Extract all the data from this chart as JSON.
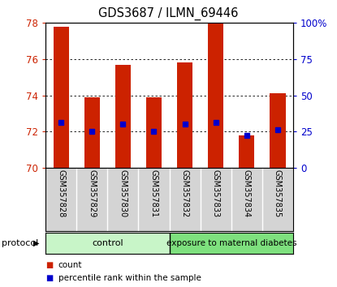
{
  "title": "GDS3687 / ILMN_69446",
  "samples": [
    "GSM357828",
    "GSM357829",
    "GSM357830",
    "GSM357831",
    "GSM357832",
    "GSM357833",
    "GSM357834",
    "GSM357835"
  ],
  "count_values": [
    77.8,
    73.9,
    75.7,
    73.9,
    75.8,
    78.0,
    71.8,
    74.1
  ],
  "percentile_values": [
    72.5,
    72.0,
    72.4,
    72.0,
    72.4,
    72.5,
    71.8,
    72.1
  ],
  "ylim_left": [
    70,
    78
  ],
  "ylim_right": [
    0,
    100
  ],
  "yticks_left": [
    70,
    72,
    74,
    76,
    78
  ],
  "yticks_right": [
    0,
    25,
    50,
    75,
    100
  ],
  "ytick_labels_right": [
    "0",
    "25",
    "50",
    "75",
    "100%"
  ],
  "bar_color": "#cc2200",
  "dot_color": "#0000cc",
  "bar_width": 0.5,
  "left_tick_color": "#cc2200",
  "right_tick_color": "#0000cc",
  "control_samples": 4,
  "group_labels": [
    "control",
    "exposure to maternal diabetes"
  ],
  "group_color_light": "#c8f5c8",
  "group_color_dark": "#7ee07e",
  "protocol_label": "protocol",
  "legend_items": [
    "count",
    "percentile rank within the sample"
  ],
  "plot_bg_color": "#ffffff",
  "grid_color": "#000000",
  "xlabel_area_color": "#d4d4d4",
  "xlabel_area_border_color": "#aaaaaa"
}
